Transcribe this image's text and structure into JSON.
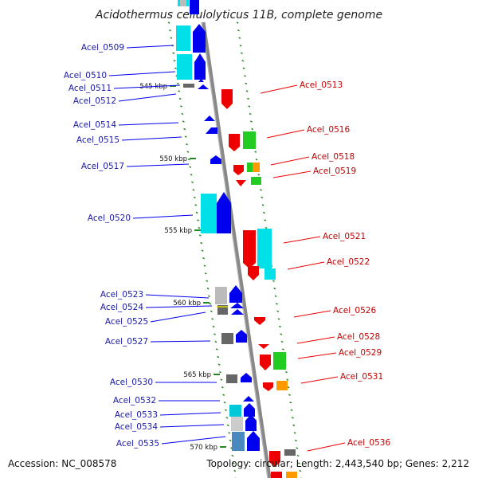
{
  "title": "Acidothermus cellulolyticus 11B, complete genome",
  "footer": {
    "accession": "Accession: NC_008578",
    "topology": "Topology: circular; Length: 2,443,540 bp; Genes: 2,212"
  },
  "scale_marks": [
    {
      "label": "545 kbp",
      "kbp": 545
    },
    {
      "label": "550 kbp",
      "kbp": 550
    },
    {
      "label": "555 kbp",
      "kbp": 555
    },
    {
      "label": "560 kbp",
      "kbp": 560
    },
    {
      "label": "565 kbp",
      "kbp": 565
    },
    {
      "label": "570 kbp",
      "kbp": 570
    }
  ],
  "genes_left": [
    {
      "name": "Acel_0509",
      "color": "#0000ee"
    },
    {
      "name": "Acel_0510",
      "color": "#0000ee"
    },
    {
      "name": "Acel_0511",
      "color": "#0000ee"
    },
    {
      "name": "Acel_0512",
      "color": "#0000ee"
    },
    {
      "name": "Acel_0514",
      "color": "#0000ee"
    },
    {
      "name": "Acel_0515",
      "color": "#0000ee"
    },
    {
      "name": "Acel_0517",
      "color": "#0000ee"
    },
    {
      "name": "Acel_0520",
      "color": "#0000ee"
    },
    {
      "name": "Acel_0523",
      "color": "#0000ee"
    },
    {
      "name": "Acel_0524",
      "color": "#0000ee"
    },
    {
      "name": "Acel_0525",
      "color": "#0000ee"
    },
    {
      "name": "Acel_0527",
      "color": "#0000ee"
    },
    {
      "name": "Acel_0530",
      "color": "#0000ee"
    },
    {
      "name": "Acel_0532",
      "color": "#0000ee"
    },
    {
      "name": "Acel_0533",
      "color": "#0000ee"
    },
    {
      "name": "Acel_0534",
      "color": "#0000ee"
    },
    {
      "name": "Acel_0535",
      "color": "#0000ee"
    }
  ],
  "genes_right": [
    {
      "name": "Acel_0513",
      "color": "#ee0000"
    },
    {
      "name": "Acel_0516",
      "color": "#ee0000"
    },
    {
      "name": "Acel_0518",
      "color": "#ee0000"
    },
    {
      "name": "Acel_0519",
      "color": "#ee0000"
    },
    {
      "name": "Acel_0521",
      "color": "#ee0000"
    },
    {
      "name": "Acel_0522",
      "color": "#ee0000"
    },
    {
      "name": "Acel_0526",
      "color": "#ee0000"
    },
    {
      "name": "Acel_0528",
      "color": "#ee0000"
    },
    {
      "name": "Acel_0529",
      "color": "#ee0000"
    },
    {
      "name": "Acel_0531",
      "color": "#ee0000"
    },
    {
      "name": "Acel_0536",
      "color": "#ee0000"
    }
  ],
  "colors": {
    "forward_cds": "#0000ee",
    "reverse_cds": "#ee0000",
    "cyan_feature": "#00e0e8",
    "green_feature": "#22cc22",
    "orange_feature": "#ff9900",
    "gray_feature": "#666666",
    "backbone": "#888888",
    "scale_dash": "#228822"
  }
}
